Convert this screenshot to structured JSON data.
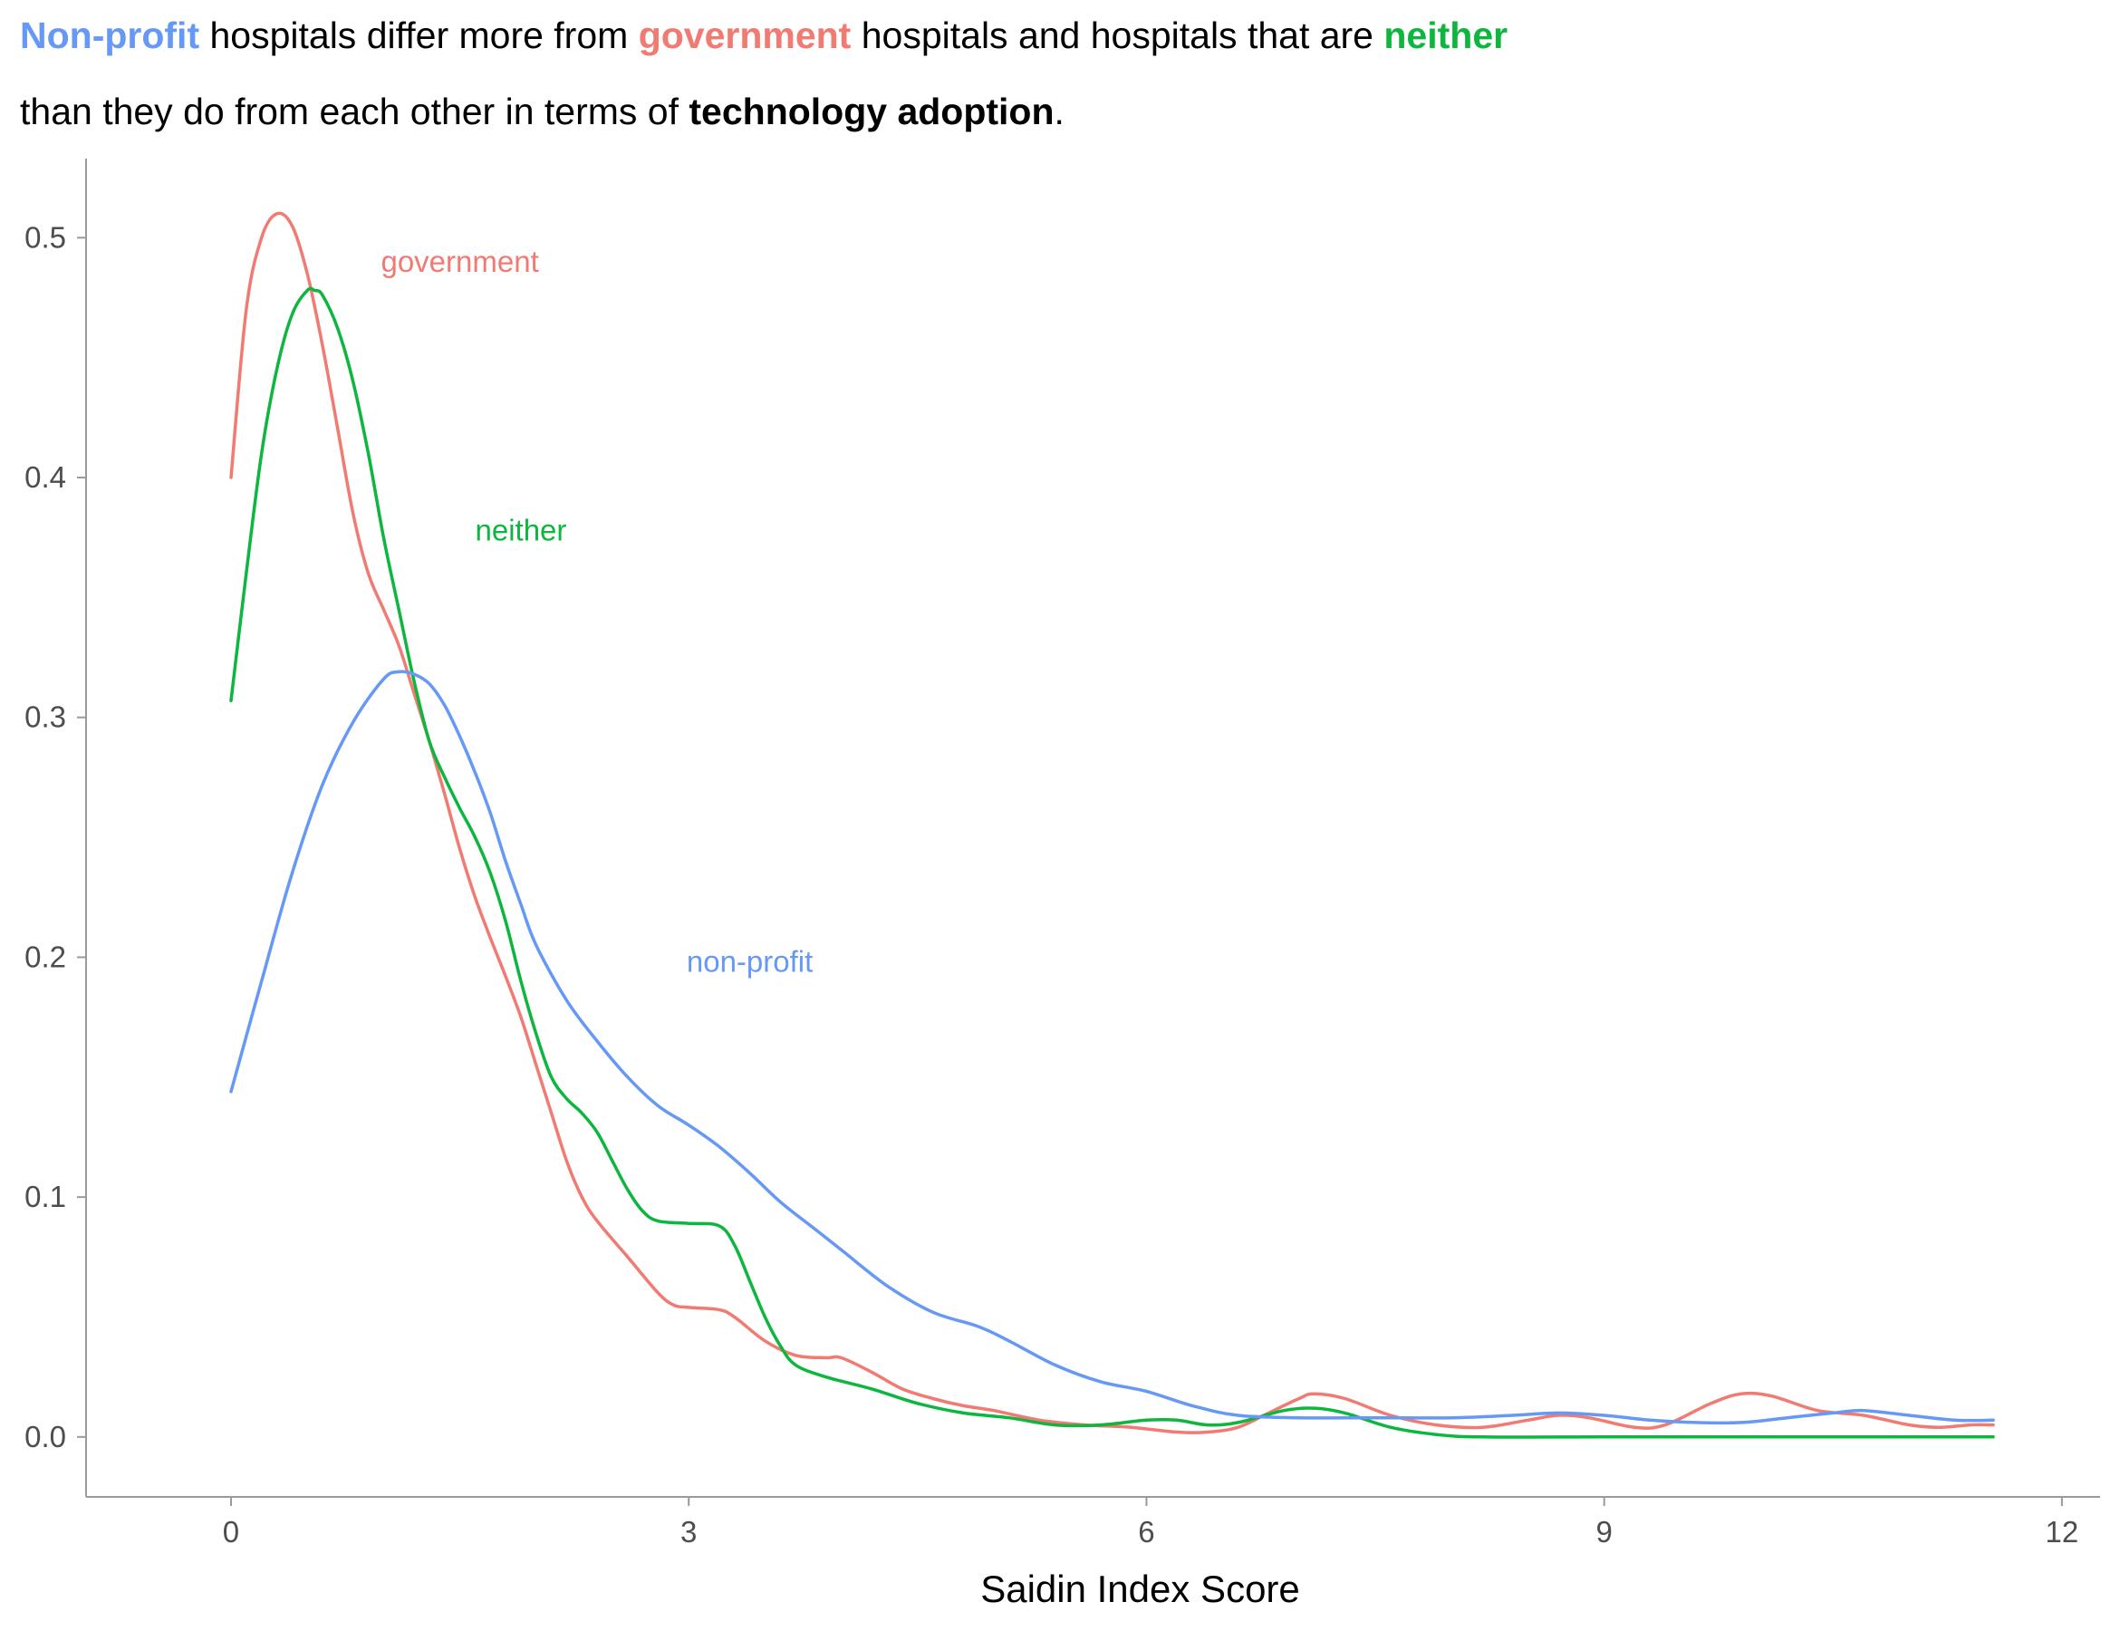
{
  "colors": {
    "government": "#F17A72",
    "neither": "#0DB63E",
    "non_profit": "#6698F5"
  },
  "title": {
    "line1": {
      "w1": "Non-profit",
      "t1": " hospitals differ more from ",
      "w2": "government",
      "t2": " hospitals and hospitals that are ",
      "w3": "neither"
    },
    "line2": {
      "t1": "than they do from each other in terms of ",
      "w1": "technology adoption",
      "t2": "."
    }
  },
  "chart_data": {
    "type": "line",
    "xlabel": "Saidin Index Score",
    "ylabel": "",
    "xlim": [
      -0.95,
      12.25
    ],
    "ylim": [
      -0.025,
      0.533
    ],
    "x_ticks": [
      0,
      3,
      6,
      9,
      12
    ],
    "x_tick_labels": [
      "0",
      "3",
      "6",
      "9",
      "12"
    ],
    "y_ticks": [
      0.0,
      0.1,
      0.2,
      0.3,
      0.4,
      0.5
    ],
    "y_tick_labels": [
      "0.0",
      "0.1",
      "0.2",
      "0.3",
      "0.4",
      "0.5"
    ],
    "grid": false,
    "series": [
      {
        "name": "government",
        "color": "#F17A72",
        "label": {
          "text": "government",
          "x": 1.5,
          "y": 0.49
        },
        "points": [
          [
            0,
            0.4
          ],
          [
            0.1,
            0.47
          ],
          [
            0.2,
            0.5
          ],
          [
            0.3,
            0.51
          ],
          [
            0.4,
            0.505
          ],
          [
            0.5,
            0.485
          ],
          [
            0.6,
            0.455
          ],
          [
            0.7,
            0.42
          ],
          [
            0.8,
            0.385
          ],
          [
            0.9,
            0.36
          ],
          [
            1.0,
            0.345
          ],
          [
            1.1,
            0.33
          ],
          [
            1.2,
            0.31
          ],
          [
            1.3,
            0.29
          ],
          [
            1.4,
            0.268
          ],
          [
            1.5,
            0.245
          ],
          [
            1.6,
            0.225
          ],
          [
            1.7,
            0.208
          ],
          [
            1.8,
            0.192
          ],
          [
            1.9,
            0.175
          ],
          [
            2.0,
            0.155
          ],
          [
            2.1,
            0.135
          ],
          [
            2.2,
            0.115
          ],
          [
            2.3,
            0.1
          ],
          [
            2.4,
            0.09
          ],
          [
            2.6,
            0.075
          ],
          [
            2.8,
            0.06
          ],
          [
            2.9,
            0.055
          ],
          [
            3.0,
            0.054
          ],
          [
            3.2,
            0.053
          ],
          [
            3.3,
            0.05
          ],
          [
            3.5,
            0.04
          ],
          [
            3.7,
            0.034
          ],
          [
            3.9,
            0.033
          ],
          [
            4.0,
            0.033
          ],
          [
            4.2,
            0.027
          ],
          [
            4.4,
            0.02
          ],
          [
            4.6,
            0.016
          ],
          [
            4.8,
            0.013
          ],
          [
            5.0,
            0.011
          ],
          [
            5.3,
            0.007
          ],
          [
            5.6,
            0.005
          ],
          [
            5.9,
            0.004
          ],
          [
            6.2,
            0.002
          ],
          [
            6.4,
            0.002
          ],
          [
            6.6,
            0.004
          ],
          [
            6.8,
            0.01
          ],
          [
            7.0,
            0.016
          ],
          [
            7.1,
            0.018
          ],
          [
            7.3,
            0.016
          ],
          [
            7.6,
            0.009
          ],
          [
            7.9,
            0.005
          ],
          [
            8.2,
            0.004
          ],
          [
            8.5,
            0.007
          ],
          [
            8.7,
            0.009
          ],
          [
            8.9,
            0.008
          ],
          [
            9.2,
            0.004
          ],
          [
            9.4,
            0.005
          ],
          [
            9.7,
            0.014
          ],
          [
            9.9,
            0.018
          ],
          [
            10.1,
            0.017
          ],
          [
            10.4,
            0.011
          ],
          [
            10.7,
            0.009
          ],
          [
            11.0,
            0.005
          ],
          [
            11.2,
            0.004
          ],
          [
            11.4,
            0.005
          ],
          [
            11.55,
            0.005
          ]
        ]
      },
      {
        "name": "neither",
        "color": "#0DB63E",
        "label": {
          "text": "neither",
          "x": 1.9,
          "y": 0.378
        },
        "points": [
          [
            0,
            0.307
          ],
          [
            0.1,
            0.36
          ],
          [
            0.2,
            0.41
          ],
          [
            0.3,
            0.445
          ],
          [
            0.4,
            0.468
          ],
          [
            0.5,
            0.478
          ],
          [
            0.55,
            0.478
          ],
          [
            0.6,
            0.476
          ],
          [
            0.7,
            0.462
          ],
          [
            0.8,
            0.44
          ],
          [
            0.9,
            0.41
          ],
          [
            1.0,
            0.375
          ],
          [
            1.1,
            0.345
          ],
          [
            1.2,
            0.315
          ],
          [
            1.3,
            0.29
          ],
          [
            1.4,
            0.275
          ],
          [
            1.5,
            0.262
          ],
          [
            1.6,
            0.25
          ],
          [
            1.7,
            0.235
          ],
          [
            1.8,
            0.215
          ],
          [
            1.9,
            0.19
          ],
          [
            2.0,
            0.168
          ],
          [
            2.1,
            0.15
          ],
          [
            2.2,
            0.141
          ],
          [
            2.3,
            0.135
          ],
          [
            2.4,
            0.127
          ],
          [
            2.5,
            0.115
          ],
          [
            2.6,
            0.103
          ],
          [
            2.7,
            0.094
          ],
          [
            2.8,
            0.09
          ],
          [
            3.0,
            0.089
          ],
          [
            3.2,
            0.088
          ],
          [
            3.3,
            0.08
          ],
          [
            3.4,
            0.065
          ],
          [
            3.5,
            0.05
          ],
          [
            3.6,
            0.038
          ],
          [
            3.7,
            0.03
          ],
          [
            3.9,
            0.025
          ],
          [
            4.2,
            0.02
          ],
          [
            4.5,
            0.014
          ],
          [
            4.8,
            0.01
          ],
          [
            5.1,
            0.008
          ],
          [
            5.4,
            0.005
          ],
          [
            5.7,
            0.005
          ],
          [
            6.0,
            0.007
          ],
          [
            6.2,
            0.007
          ],
          [
            6.4,
            0.005
          ],
          [
            6.6,
            0.006
          ],
          [
            6.9,
            0.011
          ],
          [
            7.1,
            0.012
          ],
          [
            7.3,
            0.01
          ],
          [
            7.6,
            0.004
          ],
          [
            7.9,
            0.001
          ],
          [
            8.2,
            0.0
          ],
          [
            9.0,
            0.0
          ],
          [
            10.0,
            0.0
          ],
          [
            11.0,
            0.0
          ],
          [
            11.55,
            0.0
          ]
        ]
      },
      {
        "name": "non-profit",
        "color": "#6698F5",
        "label": {
          "text": "non-profit",
          "x": 3.4,
          "y": 0.198
        },
        "points": [
          [
            0,
            0.144
          ],
          [
            0.2,
            0.19
          ],
          [
            0.4,
            0.235
          ],
          [
            0.6,
            0.272
          ],
          [
            0.8,
            0.298
          ],
          [
            1.0,
            0.316
          ],
          [
            1.1,
            0.319
          ],
          [
            1.2,
            0.318
          ],
          [
            1.3,
            0.314
          ],
          [
            1.4,
            0.305
          ],
          [
            1.5,
            0.292
          ],
          [
            1.6,
            0.277
          ],
          [
            1.7,
            0.26
          ],
          [
            1.8,
            0.24
          ],
          [
            1.9,
            0.222
          ],
          [
            2.0,
            0.205
          ],
          [
            2.2,
            0.182
          ],
          [
            2.4,
            0.165
          ],
          [
            2.6,
            0.15
          ],
          [
            2.8,
            0.138
          ],
          [
            3.0,
            0.13
          ],
          [
            3.2,
            0.121
          ],
          [
            3.4,
            0.11
          ],
          [
            3.6,
            0.098
          ],
          [
            3.8,
            0.088
          ],
          [
            4.0,
            0.078
          ],
          [
            4.3,
            0.063
          ],
          [
            4.6,
            0.052
          ],
          [
            4.9,
            0.046
          ],
          [
            5.1,
            0.04
          ],
          [
            5.4,
            0.03
          ],
          [
            5.7,
            0.023
          ],
          [
            6.0,
            0.019
          ],
          [
            6.3,
            0.013
          ],
          [
            6.6,
            0.009
          ],
          [
            7.0,
            0.008
          ],
          [
            7.5,
            0.008
          ],
          [
            8.0,
            0.008
          ],
          [
            8.4,
            0.009
          ],
          [
            8.7,
            0.01
          ],
          [
            9.0,
            0.009
          ],
          [
            9.3,
            0.007
          ],
          [
            9.6,
            0.006
          ],
          [
            9.9,
            0.006
          ],
          [
            10.2,
            0.008
          ],
          [
            10.5,
            0.01
          ],
          [
            10.7,
            0.011
          ],
          [
            11.0,
            0.009
          ],
          [
            11.3,
            0.007
          ],
          [
            11.55,
            0.007
          ]
        ]
      }
    ]
  }
}
